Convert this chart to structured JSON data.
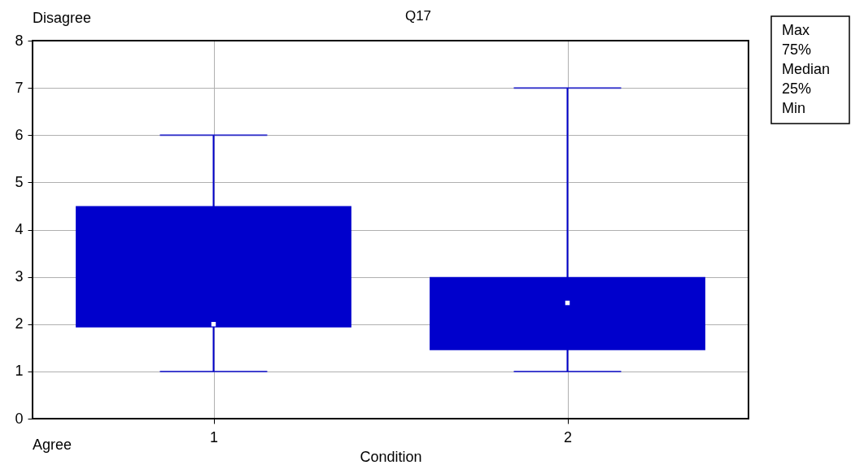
{
  "chart_data": {
    "type": "box",
    "title": "Q17",
    "xlabel": "Condition",
    "categories": [
      "1",
      "2"
    ],
    "series": [
      {
        "color": "#0000cc",
        "boxes": [
          {
            "low": 1,
            "q1": 1.93,
            "median": 2,
            "q3": 4.5,
            "high": 6
          },
          {
            "low": 1,
            "q1": 1.45,
            "median": 2.45,
            "q3": 3,
            "high": 7
          }
        ]
      }
    ],
    "ylim": [
      0,
      8
    ],
    "yticks": [
      0,
      1,
      2,
      3,
      4,
      5,
      6,
      7,
      8
    ],
    "grid": true,
    "annotations": [
      "Disagree",
      "Agree",
      "Max",
      "75%",
      "Median",
      "25%",
      "Min"
    ]
  }
}
